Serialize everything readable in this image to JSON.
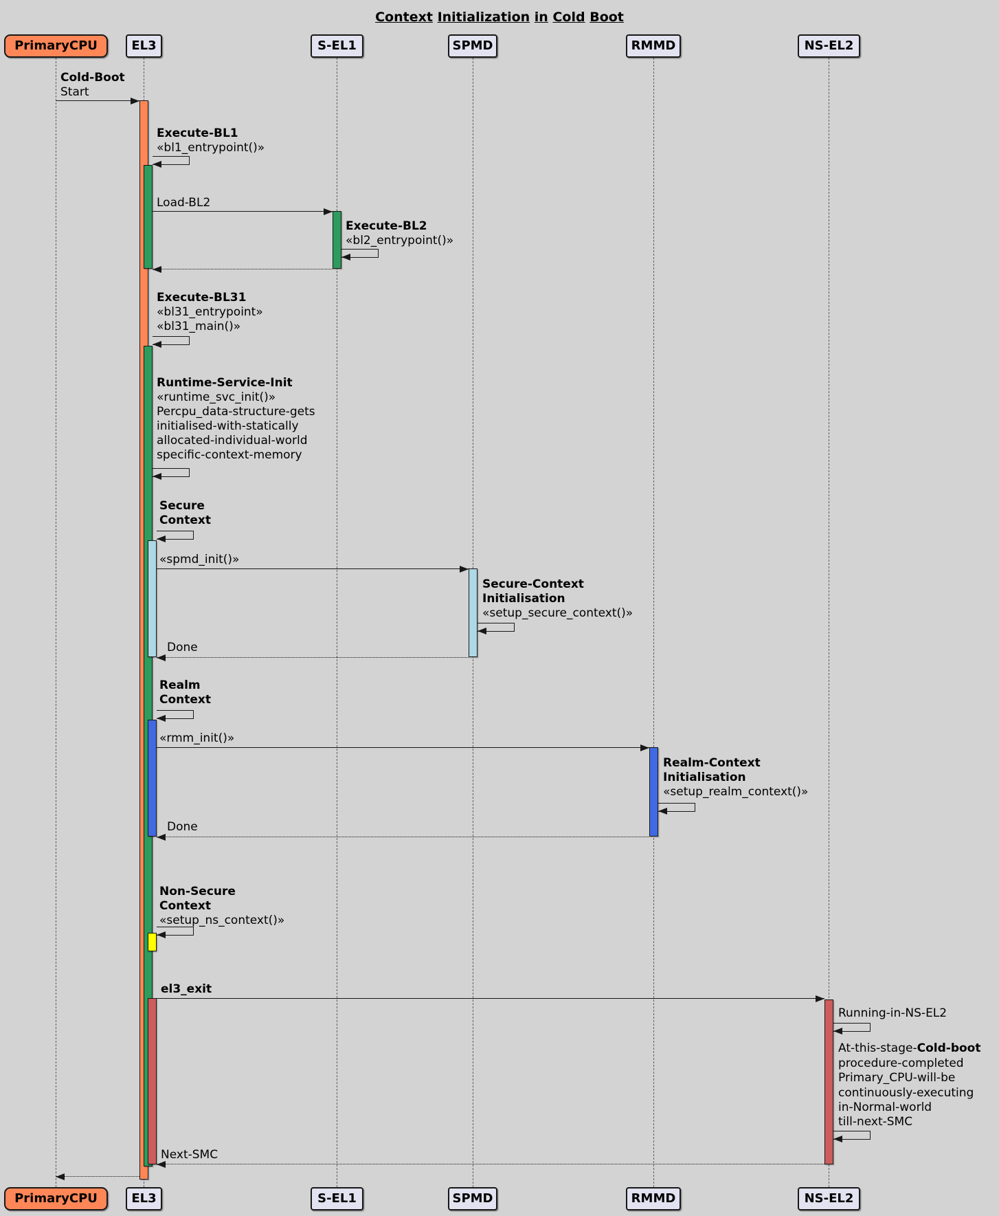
{
  "title": "Context Initialization in Cold Boot",
  "participants": [
    {
      "id": "primary-cpu",
      "label": "PrimaryCPU",
      "fill": "#FF8757"
    },
    {
      "id": "el3",
      "label": "EL3",
      "fill": "#E2E2F0"
    },
    {
      "id": "s-el1",
      "label": "S-EL1",
      "fill": "#E2E2F0"
    },
    {
      "id": "spmd",
      "label": "SPMD",
      "fill": "#E2E2F0"
    },
    {
      "id": "rmmd",
      "label": "RMMD",
      "fill": "#E2E2F0"
    },
    {
      "id": "ns-el2",
      "label": "NS-EL2",
      "fill": "#E2E2F0"
    }
  ],
  "messages": {
    "cold_boot": {
      "line1": "Cold-Boot",
      "line2": "Start"
    },
    "load_bl2": "Load-BL2",
    "spmd_init": "«spmd_init()»",
    "spmd_done": "Done",
    "rmm_init": "«rmm_init()»",
    "rmm_done": "Done",
    "el3_exit": "el3_exit",
    "next_smc": "Next-SMC"
  },
  "self_calls": {
    "execute_bl1": {
      "title": "Execute-BL1",
      "lines": [
        "«bl1_entrypoint()»"
      ]
    },
    "execute_bl2": {
      "title": "Execute-BL2",
      "lines": [
        "«bl2_entrypoint()»"
      ]
    },
    "execute_bl31": {
      "title": "Execute-BL31",
      "lines": [
        "«bl31_entrypoint»",
        "«bl31_main()»"
      ]
    },
    "runtime_service_init": {
      "title": "Runtime-Service-Init",
      "lines": [
        "«runtime_svc_init()»",
        "Percpu_data-structure-gets",
        "initialised-with-statically",
        "allocated-individual-world",
        "specific-context-memory"
      ]
    },
    "secure_context": {
      "line1": "Secure",
      "line2": "Context"
    },
    "secure_context_init": {
      "line1": "Secure-Context",
      "line2": "Initialisation",
      "lines": [
        "«setup_secure_context()»"
      ]
    },
    "realm_context": {
      "line1": "Realm",
      "line2": "Context"
    },
    "realm_context_init": {
      "line1": "Realm-Context",
      "line2": "Initialisation",
      "lines": [
        "«setup_realm_context()»"
      ]
    },
    "non_secure_context": {
      "line1": "Non-Secure",
      "line2": "Context",
      "lines": [
        "«setup_ns_context()»"
      ]
    },
    "running_note": {
      "line1": "Running-in-NS-EL2"
    },
    "cold_boot_note": {
      "prefix": "At-this-stage-",
      "bold": "Cold-boot",
      "lines": [
        "procedure-completed",
        "Primary_CPU-will-be",
        "continuously-executing",
        "in-Normal-world",
        "till-next-SMC"
      ]
    }
  },
  "colors": {
    "background": "#D3D3D3",
    "participant_fill": "#E2E2F0",
    "primary_cpu_fill": "#FF8757",
    "activation_orange": "#FF8757",
    "activation_green": "#2D9C5C",
    "activation_light_blue": "#ADD8E6",
    "activation_blue": "#4169E1",
    "activation_yellow": "#FFFF00",
    "activation_red": "#CD5C5C",
    "line": "#181818"
  }
}
